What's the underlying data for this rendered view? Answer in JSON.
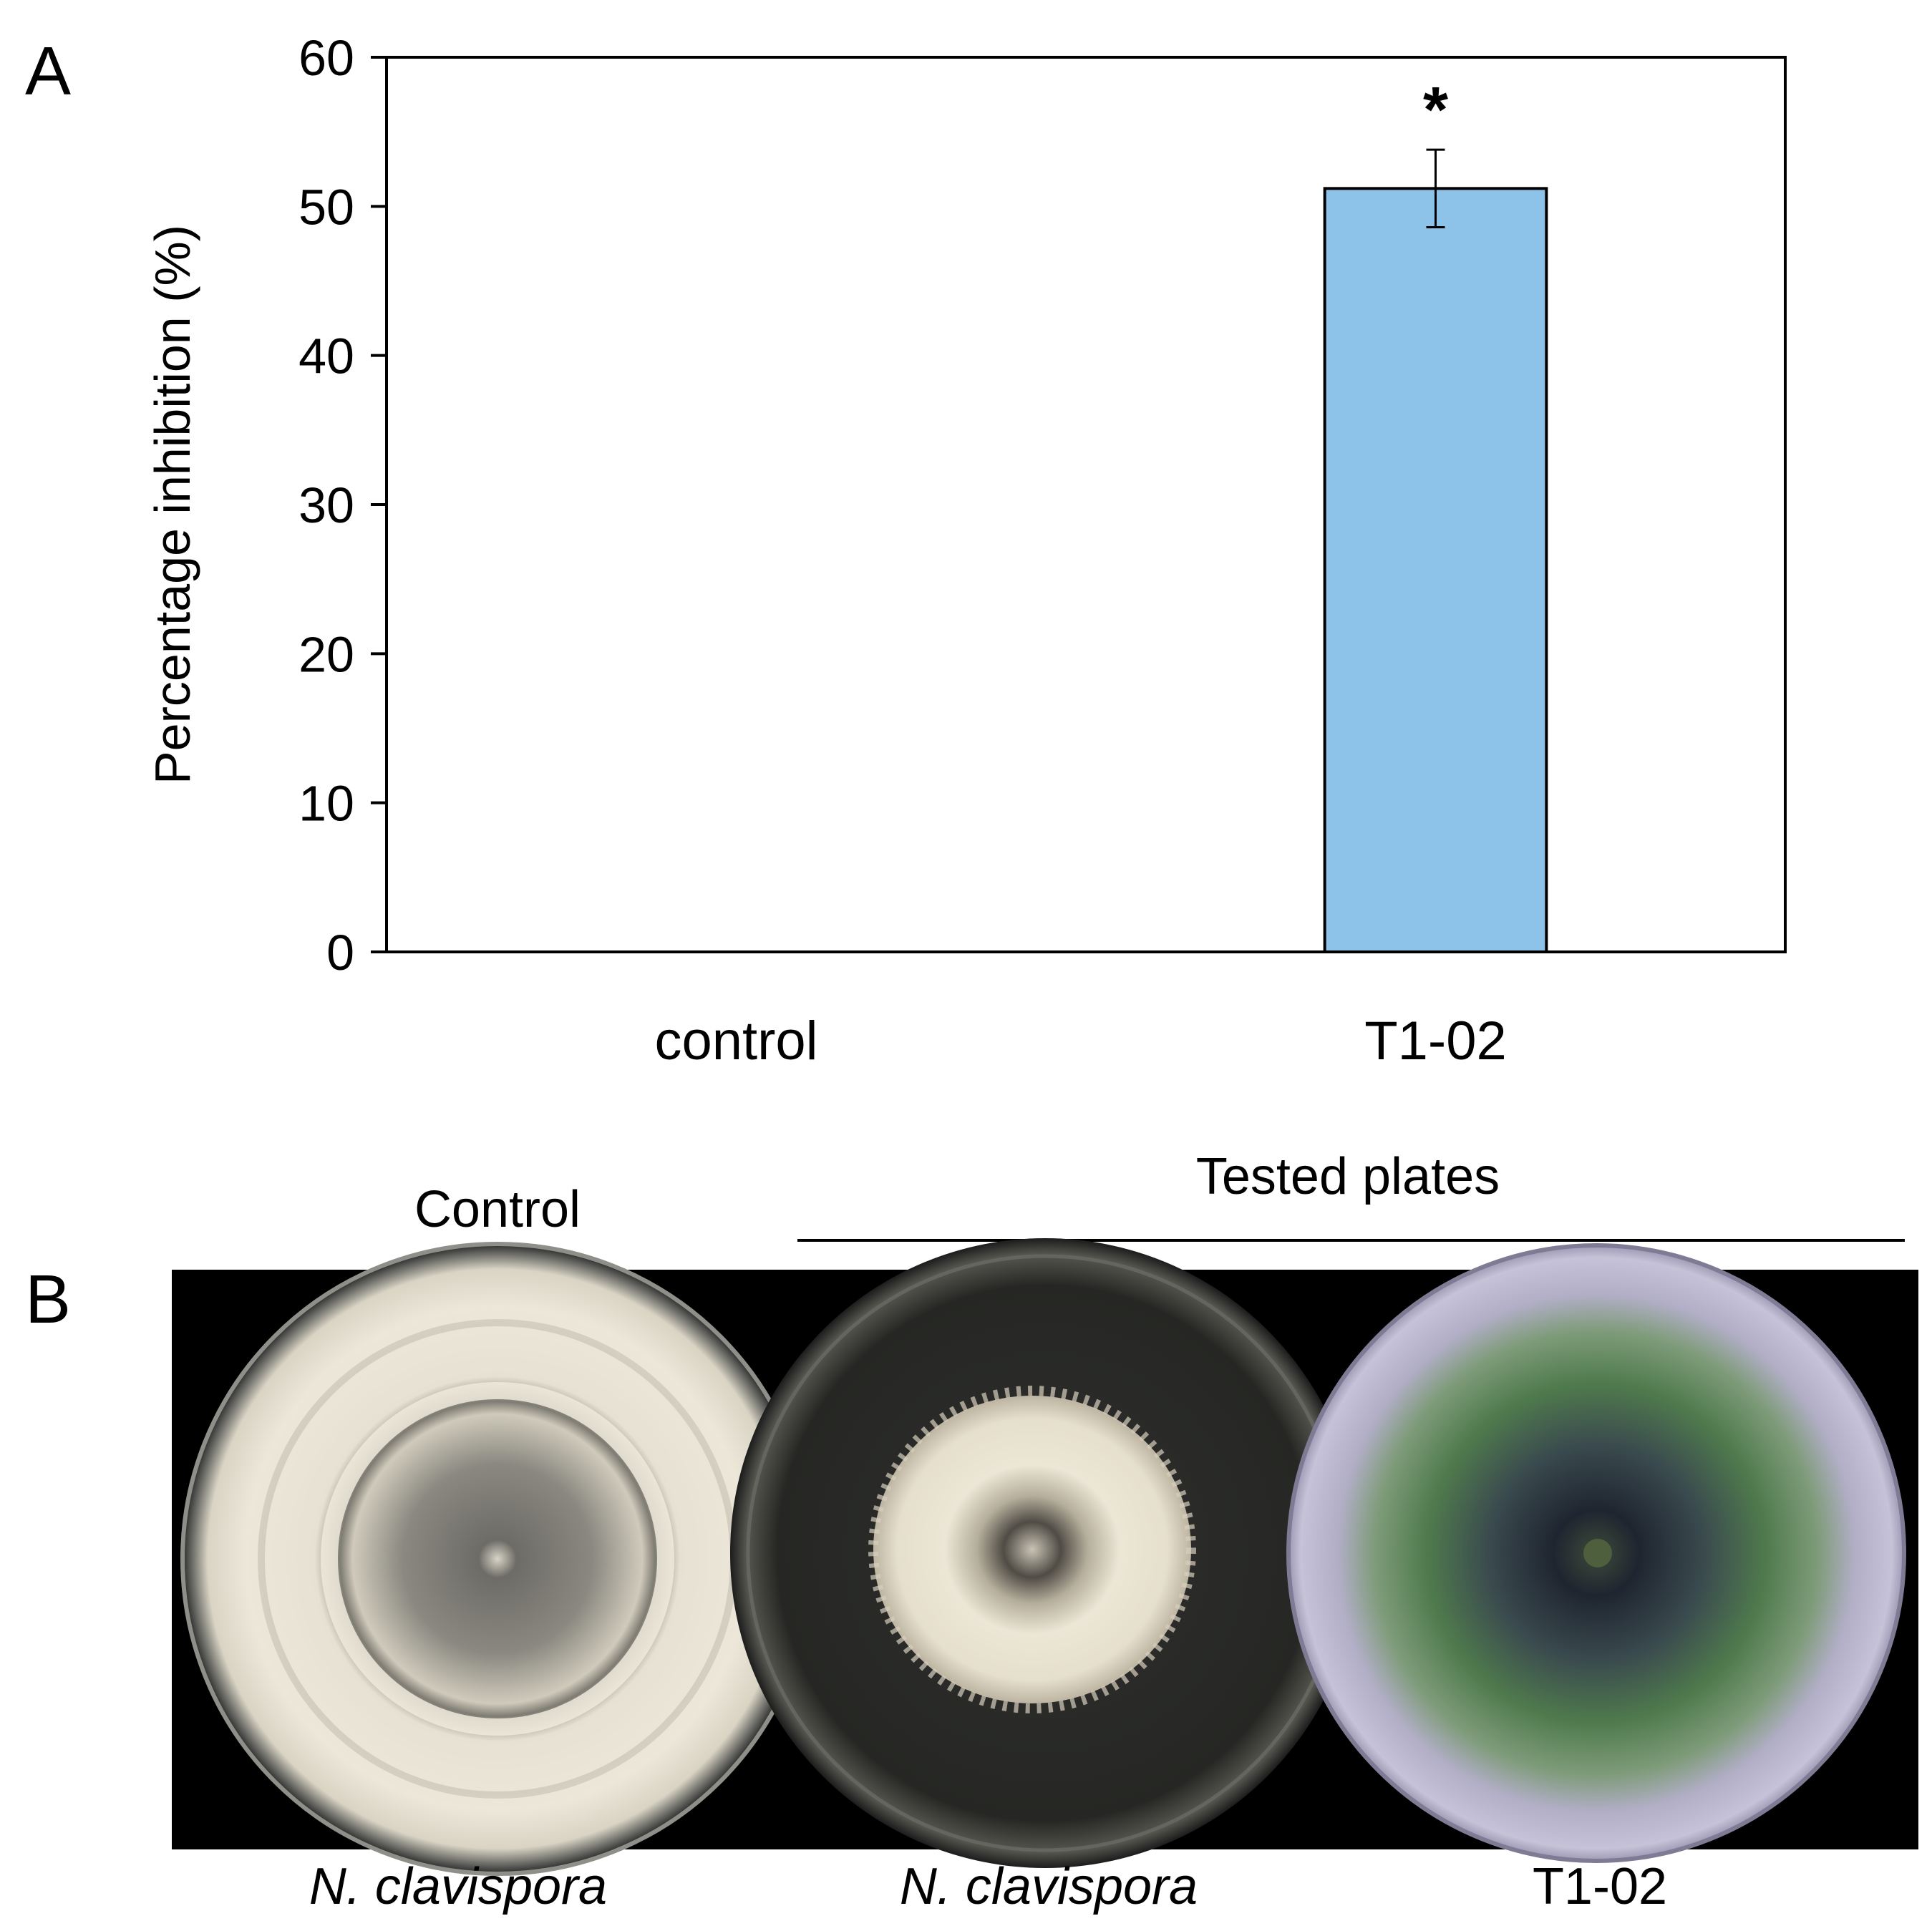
{
  "panels": {
    "a_label": "A",
    "b_label": "B"
  },
  "chart_data": {
    "type": "bar",
    "categories": [
      "control",
      "T1-02"
    ],
    "values": [
      0,
      51.2
    ],
    "errors": [
      0,
      2.6
    ],
    "annotations": [
      {
        "category": "T1-02",
        "text": "*"
      }
    ],
    "title": "",
    "xlabel": "",
    "ylabel": "Percentage inhibition (%)",
    "ylim": [
      0,
      60
    ],
    "yticks": [
      0,
      10,
      20,
      30,
      40,
      50,
      60
    ],
    "grid": false,
    "bar_color": "#8DC3E9",
    "bar_edge_color": "#000000"
  },
  "photo_panel": {
    "control_heading": "Control",
    "tested_heading": "Tested plates",
    "plates": [
      {
        "caption": "N. clavispora",
        "italic": true
      },
      {
        "caption": "N. clavispora",
        "italic": true
      },
      {
        "caption": "T1-02",
        "italic": false
      }
    ],
    "background_color": "#000000"
  }
}
